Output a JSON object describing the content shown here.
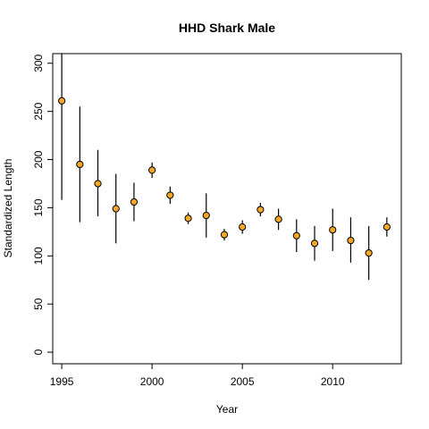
{
  "chart_data": {
    "type": "scatter",
    "title": "HHD Shark Male",
    "xlabel": "Year",
    "ylabel": "Standardized Length",
    "xlim": [
      1994.5,
      2013.8
    ],
    "ylim": [
      -12,
      310
    ],
    "x_ticks": [
      1995,
      2000,
      2005,
      2010
    ],
    "y_ticks": [
      0,
      50,
      100,
      150,
      200,
      250,
      300
    ],
    "grid": false,
    "legend": "none",
    "point_color": "#f5a623",
    "series": [
      {
        "points": [
          {
            "x": 1995,
            "y": 261,
            "lo": 158,
            "hi": 310
          },
          {
            "x": 1996,
            "y": 195,
            "lo": 135,
            "hi": 255
          },
          {
            "x": 1997,
            "y": 175,
            "lo": 141,
            "hi": 210
          },
          {
            "x": 1998,
            "y": 149,
            "lo": 113,
            "hi": 185
          },
          {
            "x": 1999,
            "y": 156,
            "lo": 136,
            "hi": 176
          },
          {
            "x": 2000,
            "y": 189,
            "lo": 181,
            "hi": 197
          },
          {
            "x": 2001,
            "y": 163,
            "lo": 154,
            "hi": 172
          },
          {
            "x": 2002,
            "y": 139,
            "lo": 133,
            "hi": 145
          },
          {
            "x": 2003,
            "y": 142,
            "lo": 119,
            "hi": 165
          },
          {
            "x": 2004,
            "y": 122,
            "lo": 116,
            "hi": 128
          },
          {
            "x": 2005,
            "y": 130,
            "lo": 123,
            "hi": 137
          },
          {
            "x": 2006,
            "y": 148,
            "lo": 141,
            "hi": 155
          },
          {
            "x": 2007,
            "y": 138,
            "lo": 127,
            "hi": 149
          },
          {
            "x": 2008,
            "y": 121,
            "lo": 104,
            "hi": 138
          },
          {
            "x": 2009,
            "y": 113,
            "lo": 95,
            "hi": 131
          },
          {
            "x": 2010,
            "y": 127,
            "lo": 105,
            "hi": 149
          },
          {
            "x": 2011,
            "y": 116,
            "lo": 93,
            "hi": 140
          },
          {
            "x": 2012,
            "y": 103,
            "lo": 75,
            "hi": 131
          },
          {
            "x": 2013,
            "y": 130,
            "lo": 120,
            "hi": 140
          }
        ]
      }
    ]
  }
}
